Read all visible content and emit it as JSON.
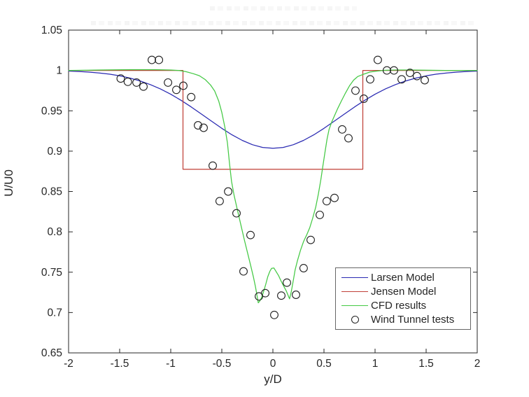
{
  "figure": {
    "background": "#ffffff",
    "axes_color": "#262626"
  },
  "chart_data": {
    "type": "line",
    "title": "",
    "xlabel": "y/D",
    "ylabel": "U/U0",
    "xlim": [
      -2,
      2
    ],
    "ylim": [
      0.65,
      1.05
    ],
    "grid": false,
    "box": true,
    "x_ticks": {
      "values": [
        -2,
        -1.5,
        -1,
        -0.5,
        0,
        0.5,
        1,
        1.5,
        2
      ],
      "labels": [
        "-2",
        "-1.5",
        "-1",
        "-0.5",
        "0",
        "0.5",
        "1",
        "1.5",
        "2"
      ]
    },
    "y_ticks": {
      "values": [
        0.65,
        0.7,
        0.75,
        0.8,
        0.85,
        0.9,
        0.95,
        1,
        1.05
      ],
      "labels": [
        "0.65",
        "0.7",
        "0.75",
        "0.8",
        "0.85",
        "0.9",
        "0.95",
        "1",
        "1.05"
      ]
    },
    "legend": {
      "position": "lower-right-inside",
      "entries": [
        "Larsen Model",
        "Jensen Model",
        "CFD results",
        "Wind Tunnel tests"
      ]
    },
    "series": [
      {
        "name": "Larsen Model",
        "type": "line",
        "color": "#2929b2",
        "points": [
          [
            -2,
            0.9992
          ],
          [
            -1.9,
            0.9987
          ],
          [
            -1.8,
            0.9979
          ],
          [
            -1.7,
            0.9969
          ],
          [
            -1.6,
            0.9954
          ],
          [
            -1.5,
            0.9933
          ],
          [
            -1.4,
            0.9906
          ],
          [
            -1.3,
            0.987
          ],
          [
            -1.2,
            0.9825
          ],
          [
            -1.1,
            0.977
          ],
          [
            -1.0,
            0.9705
          ],
          [
            -0.9,
            0.9631
          ],
          [
            -0.8,
            0.9548
          ],
          [
            -0.7,
            0.946
          ],
          [
            -0.6,
            0.9371
          ],
          [
            -0.5,
            0.9283
          ],
          [
            -0.4,
            0.9202
          ],
          [
            -0.3,
            0.9133
          ],
          [
            -0.2,
            0.908
          ],
          [
            -0.1,
            0.9046
          ],
          [
            0,
            0.9035
          ],
          [
            0.1,
            0.9046
          ],
          [
            0.2,
            0.908
          ],
          [
            0.3,
            0.9133
          ],
          [
            0.4,
            0.9202
          ],
          [
            0.5,
            0.9283
          ],
          [
            0.6,
            0.9371
          ],
          [
            0.7,
            0.946
          ],
          [
            0.8,
            0.9548
          ],
          [
            0.9,
            0.9631
          ],
          [
            1.0,
            0.9705
          ],
          [
            1.1,
            0.977
          ],
          [
            1.2,
            0.9825
          ],
          [
            1.3,
            0.987
          ],
          [
            1.4,
            0.9906
          ],
          [
            1.5,
            0.9933
          ],
          [
            1.6,
            0.9954
          ],
          [
            1.7,
            0.9969
          ],
          [
            1.8,
            0.9979
          ],
          [
            1.9,
            0.9987
          ],
          [
            2,
            0.9992
          ]
        ]
      },
      {
        "name": "Jensen Model",
        "type": "line",
        "color": "#c04038",
        "points": [
          [
            -2,
            1
          ],
          [
            -0.88,
            1
          ],
          [
            -0.88,
            0.8775
          ],
          [
            0.88,
            0.8775
          ],
          [
            0.88,
            1
          ],
          [
            2,
            1
          ]
        ]
      },
      {
        "name": "CFD results",
        "type": "line",
        "color": "#44c944",
        "points": [
          [
            -2,
            1
          ],
          [
            -1.7,
            1.0005
          ],
          [
            -1.4,
            1.001
          ],
          [
            -1.15,
            1.001
          ],
          [
            -1,
            1.0005
          ],
          [
            -0.92,
            1
          ],
          [
            -0.85,
            0.9985
          ],
          [
            -0.78,
            0.996
          ],
          [
            -0.72,
            0.9935
          ],
          [
            -0.66,
            0.9885
          ],
          [
            -0.61,
            0.982
          ],
          [
            -0.57,
            0.9745
          ],
          [
            -0.53,
            0.962
          ],
          [
            -0.5,
            0.948
          ],
          [
            -0.47,
            0.9295
          ],
          [
            -0.445,
            0.9105
          ],
          [
            -0.425,
            0.8855
          ],
          [
            -0.405,
            0.8625
          ],
          [
            -0.38,
            0.8455
          ],
          [
            -0.35,
            0.8285
          ],
          [
            -0.315,
            0.8095
          ],
          [
            -0.28,
            0.7905
          ],
          [
            -0.245,
            0.7725
          ],
          [
            -0.215,
            0.757
          ],
          [
            -0.19,
            0.7435
          ],
          [
            -0.17,
            0.7315
          ],
          [
            -0.155,
            0.7205
          ],
          [
            -0.143,
            0.712
          ],
          [
            -0.13,
            0.714
          ],
          [
            -0.11,
            0.7185
          ],
          [
            -0.09,
            0.7265
          ],
          [
            -0.07,
            0.735
          ],
          [
            -0.05,
            0.7445
          ],
          [
            -0.03,
            0.751
          ],
          [
            -0.012,
            0.7548
          ],
          [
            0.01,
            0.7552
          ],
          [
            0.03,
            0.751
          ],
          [
            0.055,
            0.746
          ],
          [
            0.08,
            0.739
          ],
          [
            0.105,
            0.733
          ],
          [
            0.13,
            0.727
          ],
          [
            0.15,
            0.721
          ],
          [
            0.163,
            0.717
          ],
          [
            0.18,
            0.726
          ],
          [
            0.2,
            0.74
          ],
          [
            0.218,
            0.753
          ],
          [
            0.24,
            0.764
          ],
          [
            0.27,
            0.777
          ],
          [
            0.3,
            0.788
          ],
          [
            0.33,
            0.796
          ],
          [
            0.36,
            0.805
          ],
          [
            0.39,
            0.817
          ],
          [
            0.42,
            0.831
          ],
          [
            0.445,
            0.847
          ],
          [
            0.47,
            0.865
          ],
          [
            0.49,
            0.882
          ],
          [
            0.51,
            0.899
          ],
          [
            0.53,
            0.915
          ],
          [
            0.55,
            0.927
          ],
          [
            0.575,
            0.936
          ],
          [
            0.6,
            0.943
          ],
          [
            0.635,
            0.953
          ],
          [
            0.67,
            0.962
          ],
          [
            0.71,
            0.972
          ],
          [
            0.75,
            0.981
          ],
          [
            0.79,
            0.988
          ],
          [
            0.83,
            0.9925
          ],
          [
            0.88,
            0.995
          ],
          [
            0.95,
            0.998
          ],
          [
            1.02,
            0.9992
          ],
          [
            1.1,
            1.0002
          ],
          [
            1.2,
            1.0005
          ],
          [
            1.35,
            1.0005
          ],
          [
            1.5,
            1.0003
          ],
          [
            1.7,
            1
          ],
          [
            2,
            1
          ]
        ]
      },
      {
        "name": "Wind Tunnel tests",
        "type": "scatter",
        "color": "#1f1f1f",
        "marker": "circle",
        "points": [
          [
            -1.49,
            0.99
          ],
          [
            -1.42,
            0.986
          ],
          [
            -1.335,
            0.985
          ],
          [
            -1.267,
            0.98
          ],
          [
            -1.185,
            1.013
          ],
          [
            -1.116,
            1.013
          ],
          [
            -1.027,
            0.985
          ],
          [
            -0.945,
            0.976
          ],
          [
            -0.877,
            0.981
          ],
          [
            -0.8,
            0.967
          ],
          [
            -0.733,
            0.932
          ],
          [
            -0.678,
            0.929
          ],
          [
            -0.589,
            0.882
          ],
          [
            -0.521,
            0.838
          ],
          [
            -0.438,
            0.85
          ],
          [
            -0.356,
            0.823
          ],
          [
            -0.288,
            0.751
          ],
          [
            -0.219,
            0.796
          ],
          [
            -0.137,
            0.72
          ],
          [
            -0.075,
            0.724
          ],
          [
            0.014,
            0.697
          ],
          [
            0.082,
            0.721
          ],
          [
            0.137,
            0.737
          ],
          [
            0.226,
            0.722
          ],
          [
            0.301,
            0.755
          ],
          [
            0.37,
            0.79
          ],
          [
            0.459,
            0.821
          ],
          [
            0.527,
            0.838
          ],
          [
            0.603,
            0.842
          ],
          [
            0.678,
            0.927
          ],
          [
            0.74,
            0.916
          ],
          [
            0.808,
            0.975
          ],
          [
            0.89,
            0.965
          ],
          [
            0.952,
            0.989
          ],
          [
            1.027,
            1.013
          ],
          [
            1.116,
            1
          ],
          [
            1.185,
            1
          ],
          [
            1.26,
            0.989
          ],
          [
            1.342,
            0.997
          ],
          [
            1.41,
            0.993
          ],
          [
            1.486,
            0.988
          ]
        ]
      }
    ]
  }
}
